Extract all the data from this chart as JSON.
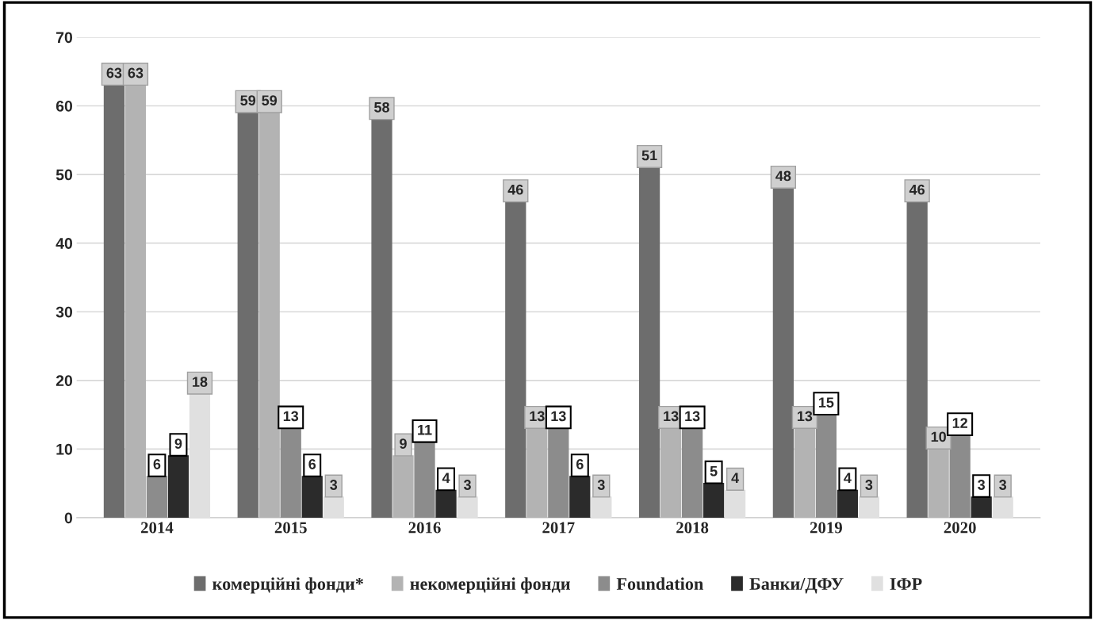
{
  "chart_data": {
    "type": "bar",
    "categories": [
      "2014",
      "2015",
      "2016",
      "2017",
      "2018",
      "2019",
      "2020"
    ],
    "series": [
      {
        "name": "комерційні фонди*",
        "color": "#6d6d6d",
        "values": [
          63,
          59,
          58,
          46,
          51,
          48,
          46
        ]
      },
      {
        "name": "некомерційні фонди",
        "color": "#b3b3b3",
        "values": [
          63,
          59,
          9,
          13,
          13,
          13,
          10
        ]
      },
      {
        "name": "Foundation",
        "color": "#8c8c8c",
        "values": [
          6,
          13,
          11,
          13,
          13,
          15,
          12
        ]
      },
      {
        "name": "Банки/ДФУ",
        "color": "#2b2b2b",
        "values": [
          9,
          6,
          4,
          6,
          5,
          4,
          3
        ]
      },
      {
        "name": "ІФР",
        "color": "#e0e0e0",
        "values": [
          18,
          3,
          3,
          3,
          4,
          3,
          3
        ]
      }
    ],
    "ylim": [
      0,
      70
    ],
    "yticks": [
      0,
      10,
      20,
      30,
      40,
      50,
      60,
      70
    ],
    "grid": "y",
    "legend": "bottom",
    "data_labels": true
  }
}
